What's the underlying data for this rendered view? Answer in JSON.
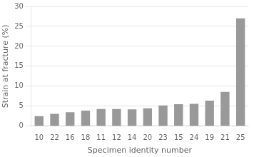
{
  "chart_data": {
    "type": "bar",
    "categories": [
      "10",
      "22",
      "16",
      "18",
      "11",
      "12",
      "14",
      "20",
      "23",
      "15",
      "24",
      "19",
      "21",
      "25"
    ],
    "values": [
      2.5,
      3.1,
      3.5,
      3.9,
      4.3,
      4.3,
      4.2,
      4.5,
      5.2,
      5.5,
      5.6,
      6.4,
      8.6,
      27.0
    ],
    "color": "#999999",
    "xlabel": "Specimen identity number",
    "ylabel": "Strain at fracture (%)",
    "ylim": [
      0,
      30
    ],
    "yticks": [
      0,
      5,
      10,
      15,
      20,
      25,
      30
    ],
    "grid": true
  }
}
